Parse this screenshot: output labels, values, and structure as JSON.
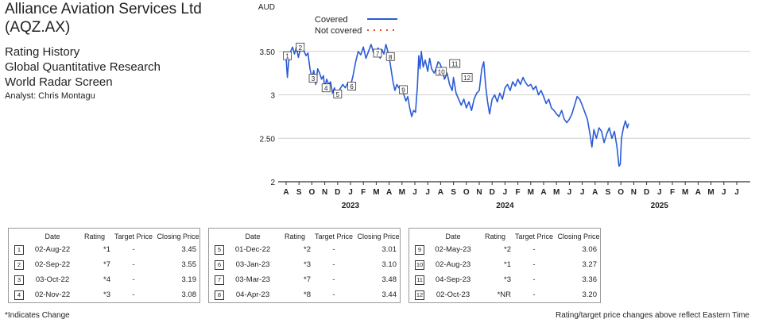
{
  "header": {
    "company_line1": "Alliance Aviation Services Ltd",
    "company_line2": "(AQZ.AX)",
    "title": "Rating History",
    "research": "Global Quantitative Research",
    "screen": "World Radar Screen",
    "analyst": "Analyst: Chris Montagu"
  },
  "chart_data": {
    "type": "line",
    "ylabel": "AUD",
    "ylim": [
      2,
      4
    ],
    "yticks": [
      2,
      2.5,
      3,
      3.5
    ],
    "ytick_labels": [
      "2",
      "2.50",
      "3",
      "3.50"
    ],
    "month_labels": [
      "A",
      "S",
      "O",
      "N",
      "D",
      "J",
      "F",
      "M",
      "A",
      "M",
      "J",
      "J",
      "A",
      "S",
      "O",
      "N",
      "D",
      "J",
      "F",
      "M",
      "A",
      "M",
      "J",
      "J",
      "A",
      "S",
      "O",
      "N",
      "D",
      "J",
      "F",
      "M",
      "A",
      "M",
      "J",
      "J"
    ],
    "year_labels": [
      {
        "label": "2023",
        "month_index": 5
      },
      {
        "label": "2024",
        "month_index": 17
      },
      {
        "label": "2025",
        "month_index": 29
      }
    ],
    "grid": "horizontal",
    "legend_position": "top",
    "legend": [
      {
        "label": "Covered",
        "color": "#2b5bd7",
        "style": "solid"
      },
      {
        "label": "Not covered",
        "color": "#e8402f",
        "style": "dotted"
      }
    ],
    "series": [
      {
        "name": "Covered",
        "color": "#2b5bd7",
        "points": [
          [
            0,
            3.42
          ],
          [
            0.1,
            3.2
          ],
          [
            0.2,
            3.38
          ],
          [
            0.35,
            3.5
          ],
          [
            0.5,
            3.55
          ],
          [
            0.65,
            3.47
          ],
          [
            0.8,
            3.55
          ],
          [
            0.95,
            3.43
          ],
          [
            1.1,
            3.52
          ],
          [
            1.25,
            3.58
          ],
          [
            1.4,
            3.5
          ],
          [
            1.55,
            3.45
          ],
          [
            1.7,
            3.48
          ],
          [
            1.85,
            3.3
          ],
          [
            2.0,
            3.2
          ],
          [
            2.15,
            3.28
          ],
          [
            2.3,
            3.12
          ],
          [
            2.45,
            3.3
          ],
          [
            2.6,
            3.25
          ],
          [
            2.75,
            3.18
          ],
          [
            2.9,
            3.22
          ],
          [
            3.0,
            3.08
          ],
          [
            3.15,
            3.18
          ],
          [
            3.3,
            3.12
          ],
          [
            3.45,
            3.15
          ],
          [
            3.6,
            3.02
          ],
          [
            3.75,
            3.08
          ],
          [
            3.9,
            3.0
          ],
          [
            4.0,
            3.01
          ],
          [
            4.2,
            3.07
          ],
          [
            4.4,
            3.12
          ],
          [
            4.6,
            3.08
          ],
          [
            4.8,
            3.14
          ],
          [
            5.0,
            3.1
          ],
          [
            5.2,
            3.22
          ],
          [
            5.4,
            3.38
          ],
          [
            5.6,
            3.5
          ],
          [
            5.8,
            3.46
          ],
          [
            6.0,
            3.55
          ],
          [
            6.2,
            3.42
          ],
          [
            6.4,
            3.5
          ],
          [
            6.6,
            3.58
          ],
          [
            6.8,
            3.48
          ],
          [
            7.0,
            3.48
          ],
          [
            7.15,
            3.54
          ],
          [
            7.3,
            3.42
          ],
          [
            7.45,
            3.52
          ],
          [
            7.6,
            3.47
          ],
          [
            7.75,
            3.58
          ],
          [
            7.9,
            3.5
          ],
          [
            8.0,
            3.44
          ],
          [
            8.15,
            3.3
          ],
          [
            8.3,
            3.15
          ],
          [
            8.45,
            3.05
          ],
          [
            8.6,
            3.12
          ],
          [
            8.75,
            3.08
          ],
          [
            9.0,
            3.06
          ],
          [
            9.15,
            3.0
          ],
          [
            9.3,
            2.93
          ],
          [
            9.45,
            2.98
          ],
          [
            9.6,
            2.85
          ],
          [
            9.75,
            2.75
          ],
          [
            9.9,
            2.82
          ],
          [
            10.05,
            2.8
          ],
          [
            10.2,
            3.1
          ],
          [
            10.3,
            3.45
          ],
          [
            10.4,
            3.3
          ],
          [
            10.5,
            3.5
          ],
          [
            10.65,
            3.32
          ],
          [
            10.8,
            3.4
          ],
          [
            11.0,
            3.27
          ],
          [
            11.15,
            3.42
          ],
          [
            11.3,
            3.3
          ],
          [
            11.5,
            3.25
          ],
          [
            11.65,
            3.3
          ],
          [
            11.8,
            3.38
          ],
          [
            11.95,
            3.36
          ],
          [
            12.1,
            3.3
          ],
          [
            12.3,
            3.18
          ],
          [
            12.5,
            3.25
          ],
          [
            12.7,
            3.12
          ],
          [
            12.9,
            3.05
          ],
          [
            13.0,
            3.2
          ],
          [
            13.2,
            3.02
          ],
          [
            13.4,
            2.95
          ],
          [
            13.6,
            2.88
          ],
          [
            13.8,
            2.95
          ],
          [
            14.0,
            2.85
          ],
          [
            14.2,
            2.92
          ],
          [
            14.4,
            2.82
          ],
          [
            14.6,
            2.95
          ],
          [
            14.8,
            3.02
          ],
          [
            15.0,
            3.05
          ],
          [
            15.2,
            3.3
          ],
          [
            15.35,
            3.38
          ],
          [
            15.5,
            3.1
          ],
          [
            15.65,
            2.92
          ],
          [
            15.8,
            2.78
          ],
          [
            16.0,
            2.95
          ],
          [
            16.2,
            3.0
          ],
          [
            16.4,
            2.92
          ],
          [
            16.6,
            3.02
          ],
          [
            16.8,
            2.95
          ],
          [
            17.0,
            3.08
          ],
          [
            17.2,
            3.12
          ],
          [
            17.4,
            3.05
          ],
          [
            17.6,
            3.15
          ],
          [
            17.8,
            3.1
          ],
          [
            18.0,
            3.18
          ],
          [
            18.2,
            3.12
          ],
          [
            18.4,
            3.2
          ],
          [
            18.6,
            3.14
          ],
          [
            18.8,
            3.1
          ],
          [
            19.0,
            3.12
          ],
          [
            19.2,
            3.06
          ],
          [
            19.4,
            3.1
          ],
          [
            19.6,
            3.0
          ],
          [
            19.8,
            3.05
          ],
          [
            20.0,
            2.98
          ],
          [
            20.2,
            2.9
          ],
          [
            20.4,
            2.95
          ],
          [
            20.6,
            2.85
          ],
          [
            20.8,
            2.82
          ],
          [
            21.0,
            2.78
          ],
          [
            21.2,
            2.75
          ],
          [
            21.4,
            2.82
          ],
          [
            21.6,
            2.72
          ],
          [
            21.8,
            2.68
          ],
          [
            22.0,
            2.72
          ],
          [
            22.2,
            2.78
          ],
          [
            22.4,
            2.88
          ],
          [
            22.6,
            2.98
          ],
          [
            22.8,
            2.95
          ],
          [
            23.0,
            2.88
          ],
          [
            23.2,
            2.8
          ],
          [
            23.4,
            2.72
          ],
          [
            23.6,
            2.55
          ],
          [
            23.75,
            2.4
          ],
          [
            23.9,
            2.6
          ],
          [
            24.1,
            2.5
          ],
          [
            24.3,
            2.62
          ],
          [
            24.5,
            2.58
          ],
          [
            24.7,
            2.45
          ],
          [
            24.9,
            2.55
          ],
          [
            25.1,
            2.62
          ],
          [
            25.3,
            2.5
          ],
          [
            25.5,
            2.58
          ],
          [
            25.7,
            2.4
          ],
          [
            25.85,
            2.18
          ],
          [
            25.95,
            2.2
          ],
          [
            26.05,
            2.5
          ],
          [
            26.2,
            2.62
          ],
          [
            26.35,
            2.7
          ],
          [
            26.5,
            2.62
          ],
          [
            26.6,
            2.67
          ]
        ]
      }
    ],
    "markers": [
      {
        "n": "1",
        "x": 0.1,
        "y": 3.45
      },
      {
        "n": "2",
        "x": 1.1,
        "y": 3.55
      },
      {
        "n": "3",
        "x": 2.1,
        "y": 3.19
      },
      {
        "n": "4",
        "x": 3.1,
        "y": 3.08
      },
      {
        "n": "5",
        "x": 4.0,
        "y": 3.01
      },
      {
        "n": "6",
        "x": 5.1,
        "y": 3.1
      },
      {
        "n": "7",
        "x": 7.1,
        "y": 3.48
      },
      {
        "n": "8",
        "x": 8.1,
        "y": 3.44
      },
      {
        "n": "9",
        "x": 9.1,
        "y": 3.06
      },
      {
        "n": "10",
        "x": 12.05,
        "y": 3.27
      },
      {
        "n": "11",
        "x": 13.1,
        "y": 3.36
      },
      {
        "n": "12",
        "x": 14.05,
        "y": 3.2
      }
    ]
  },
  "tables": [
    {
      "headers": [
        "Date",
        "Rating",
        "Target Price",
        "Closing Price"
      ],
      "rows": [
        {
          "n": "1",
          "date": "02-Aug-22",
          "rating": "*1",
          "target": "-",
          "closing": "3.45"
        },
        {
          "n": "2",
          "date": "02-Sep-22",
          "rating": "*7",
          "target": "-",
          "closing": "3.55"
        },
        {
          "n": "3",
          "date": "03-Oct-22",
          "rating": "*4",
          "target": "-",
          "closing": "3.19"
        },
        {
          "n": "4",
          "date": "02-Nov-22",
          "rating": "*3",
          "target": "-",
          "closing": "3.08"
        }
      ]
    },
    {
      "headers": [
        "Date",
        "Rating",
        "Target Price",
        "Closing Price"
      ],
      "rows": [
        {
          "n": "5",
          "date": "01-Dec-22",
          "rating": "*2",
          "target": "-",
          "closing": "3.01"
        },
        {
          "n": "6",
          "date": "03-Jan-23",
          "rating": "*3",
          "target": "-",
          "closing": "3.10"
        },
        {
          "n": "7",
          "date": "03-Mar-23",
          "rating": "*7",
          "target": "-",
          "closing": "3.48"
        },
        {
          "n": "8",
          "date": "04-Apr-23",
          "rating": "*8",
          "target": "-",
          "closing": "3.44"
        }
      ]
    },
    {
      "headers": [
        "Date",
        "Rating",
        "Target Price",
        "Closing Price"
      ],
      "rows": [
        {
          "n": "9",
          "date": "02-May-23",
          "rating": "*2",
          "target": "-",
          "closing": "3.06"
        },
        {
          "n": "10",
          "date": "02-Aug-23",
          "rating": "*1",
          "target": "-",
          "closing": "3.27"
        },
        {
          "n": "11",
          "date": "04-Sep-23",
          "rating": "*3",
          "target": "-",
          "closing": "3.36"
        },
        {
          "n": "12",
          "date": "02-Oct-23",
          "rating": "*NR",
          "target": "-",
          "closing": "3.20"
        }
      ]
    }
  ],
  "footer": {
    "left": "*Indicates Change",
    "right": "Rating/target price changes above reflect Eastern Time"
  }
}
